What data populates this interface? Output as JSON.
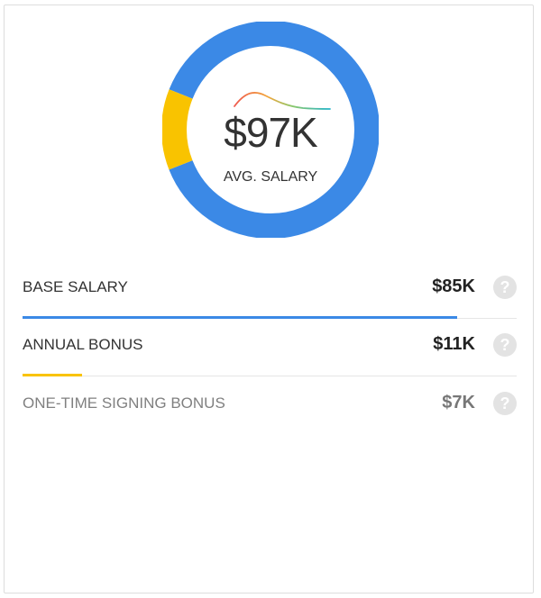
{
  "summary": {
    "avg_value": "$97K",
    "avg_label": "AVG. SALARY"
  },
  "colors": {
    "base": "#3b89e6",
    "bonus": "#f9c300",
    "divider": "#e6e6e6"
  },
  "rows": [
    {
      "label": "BASE SALARY",
      "value": "$85K",
      "share": 0.88,
      "bar_color": "#3b89e6",
      "icon": "help-icon"
    },
    {
      "label": "ANNUAL BONUS",
      "value": "$11K",
      "share": 0.12,
      "bar_color": "#f9c300",
      "icon": "help-icon"
    },
    {
      "label": "ONE-TIME SIGNING BONUS",
      "value": "$7K",
      "share": 0,
      "bar_color": null,
      "icon": "help-icon"
    }
  ]
}
